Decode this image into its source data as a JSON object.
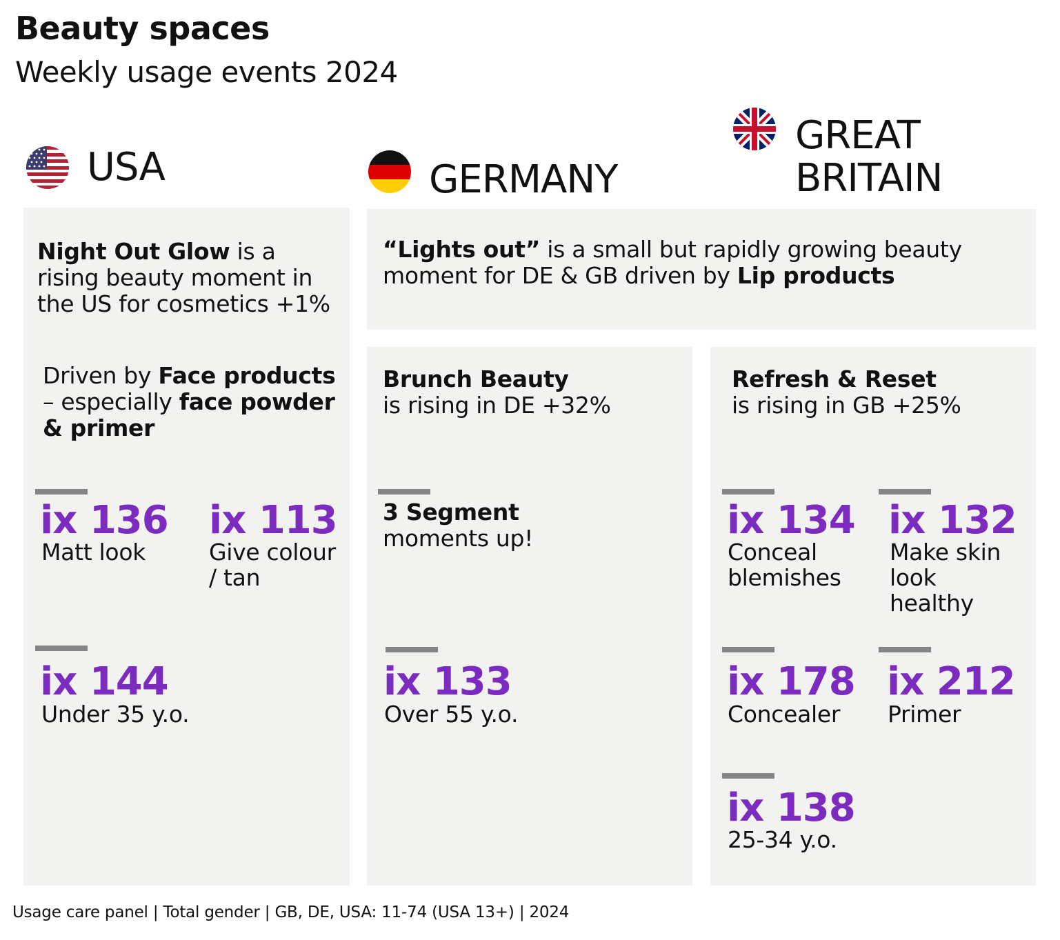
{
  "header": {
    "title": "Beauty spaces",
    "subtitle": "Weekly usage events 2024"
  },
  "countries": {
    "usa": {
      "name": "USA",
      "flag_icon": "us-flag-icon"
    },
    "germany": {
      "name": "GERMANY",
      "flag_icon": "germany-flag-icon"
    },
    "gb": {
      "name_line1": "GREAT",
      "name_line2": "BRITAIN",
      "flag_icon": "uk-flag-icon"
    }
  },
  "usa_panel": {
    "headline_bold": "Night Out Glow",
    "headline_rest1": " is a",
    "headline_line2": "rising beauty moment in",
    "headline_line3": "the US for cosmetics  +1%",
    "driven_prefix": "Driven by ",
    "driven_bold1": "Face products",
    "driven_dash": "– especially ",
    "driven_bold2": "face powder",
    "driven_bold3": "& primer",
    "metrics": [
      {
        "value": "ix 136",
        "label_line1": "Matt look",
        "label_line2": ""
      },
      {
        "value": "ix 113",
        "label_line1": "Give colour",
        "label_line2": "/ tan"
      },
      {
        "value": "ix 144",
        "label_line1": "Under 35 y.o.",
        "label_line2": ""
      }
    ]
  },
  "lights_out_panel": {
    "bold_quote": "“Lights out”",
    "rest_line1": " is a small but rapidly growing beauty",
    "line2_prefix": "moment for DE & GB driven by ",
    "line2_bold": "Lip products"
  },
  "germany_panel": {
    "headline_bold": "Brunch Beauty",
    "headline_line2": "is rising in DE +32%",
    "segment_bold": "3 Segment",
    "segment_line2": "moments up!",
    "metrics": [
      {
        "value": "ix 133",
        "label_line1": "Over 55 y.o."
      }
    ]
  },
  "gb_panel": {
    "headline_bold": "Refresh & Reset",
    "headline_line2": "is rising in GB +25%",
    "metrics": [
      {
        "value": "ix 134",
        "label_line1": "Conceal",
        "label_line2": "blemishes",
        "label_line3": ""
      },
      {
        "value": "ix 132",
        "label_line1": "Make skin",
        "label_line2": "look",
        "label_line3": "healthy"
      },
      {
        "value": "ix 178",
        "label_line1": "Concealer",
        "label_line2": "",
        "label_line3": ""
      },
      {
        "value": "ix 212",
        "label_line1": "Primer",
        "label_line2": "",
        "label_line3": ""
      },
      {
        "value": "ix 138",
        "label_line1": "25-34 y.o.",
        "label_line2": "",
        "label_line3": ""
      }
    ]
  },
  "footer": {
    "source": "Usage care panel | Total gender | GB, DE, USA: 11-74 (USA 13+) | 2024"
  },
  "colors": {
    "accent_purple": "#7b2cbf",
    "panel_bg": "#f2f2f1",
    "bar_grey": "#858585"
  }
}
